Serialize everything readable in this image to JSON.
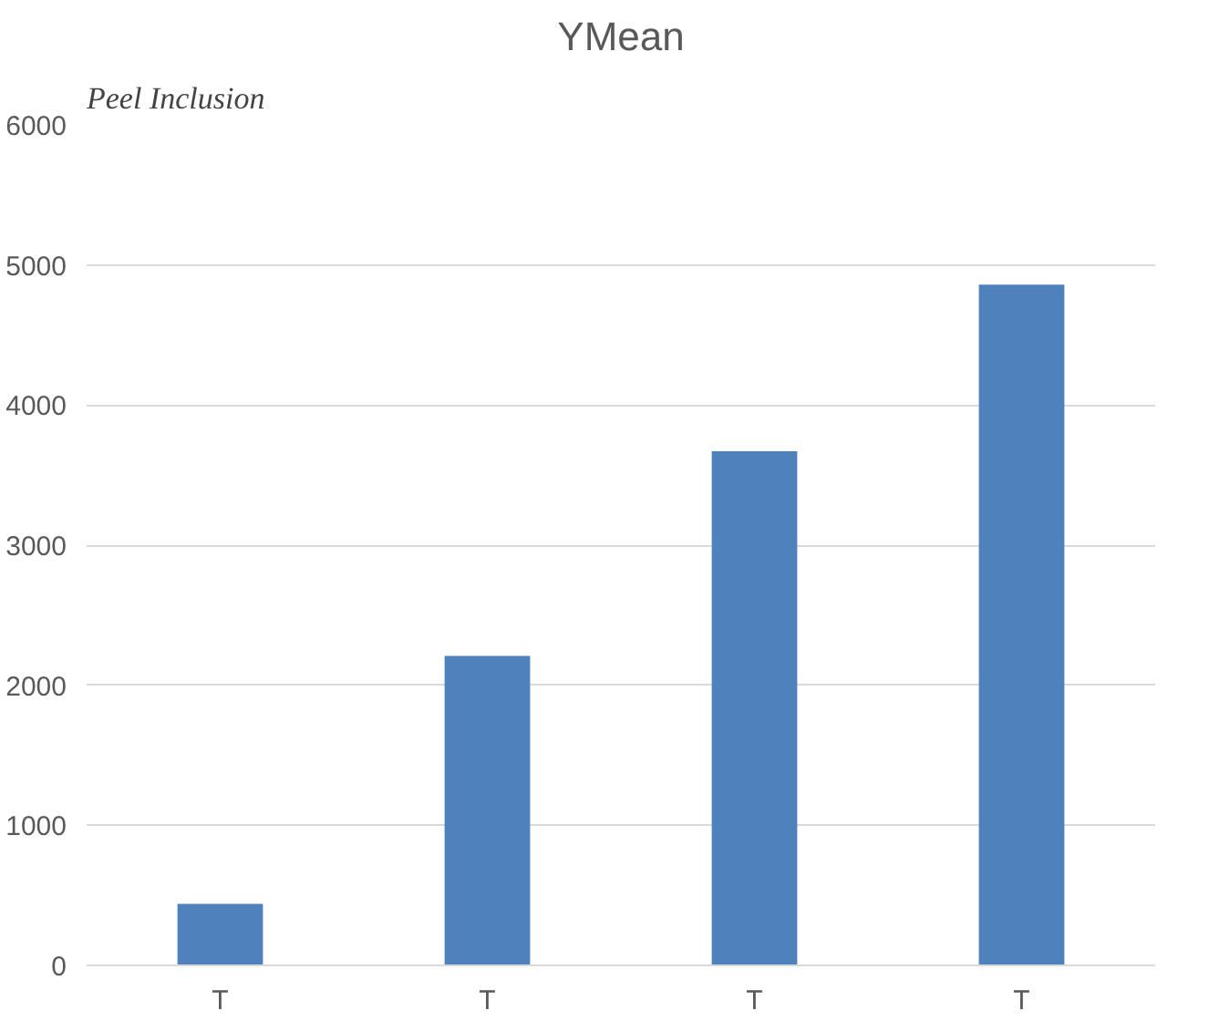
{
  "chart_data": {
    "type": "bar",
    "title": "YMean",
    "annotations": [
      "Peel Inclusion"
    ],
    "categories": [
      "T",
      "T",
      "T",
      "T"
    ],
    "values": [
      440,
      2210,
      3670,
      4860
    ],
    "color": "#4f81bd",
    "ylim": [
      0,
      6000
    ],
    "yticks": [
      0,
      1000,
      2000,
      3000,
      4000,
      5000,
      6000
    ],
    "grid": "y"
  }
}
